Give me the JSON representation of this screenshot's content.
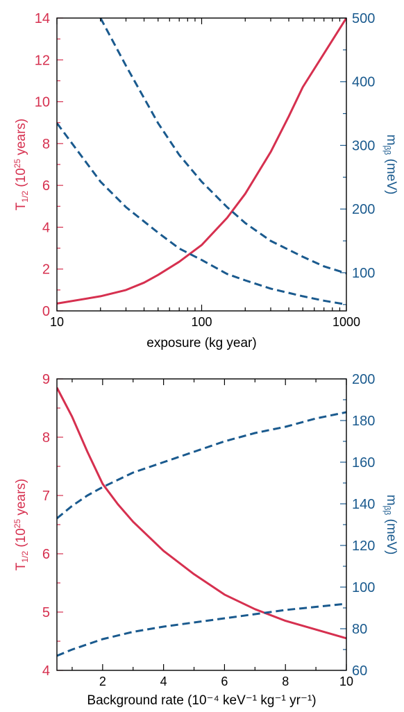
{
  "colors": {
    "left_axis": "#d6304f",
    "right_axis": "#1a5a8e",
    "axis": "#000000"
  },
  "chart_data": [
    {
      "type": "line",
      "xlabel": "exposure (kg year)",
      "ylabel_left": "T1/2 (10^25 years)",
      "ylabel_right": "mββ (meV)",
      "xscale": "log",
      "xlim": [
        10,
        1000
      ],
      "ylim_left": [
        0,
        14
      ],
      "ylim_right": [
        40,
        500
      ],
      "x_ticks": [
        10,
        100,
        1000
      ],
      "x_tick_labels": [
        "10",
        "100",
        "1000"
      ],
      "y_ticks_left": [
        0,
        2,
        4,
        6,
        8,
        10,
        12,
        14
      ],
      "y_tick_labels_left": [
        "0",
        "2",
        "4",
        "6",
        "8",
        "10",
        "12",
        "14"
      ],
      "y_ticks_right": [
        100,
        200,
        300,
        400,
        500
      ],
      "y_tick_labels_right": [
        "100",
        "200",
        "300",
        "400",
        "500"
      ],
      "series": [
        {
          "axis": "left",
          "style": "solid",
          "x": [
            10,
            20,
            30,
            40,
            50,
            70,
            100,
            150,
            200,
            300,
            400,
            500,
            700,
            1000
          ],
          "y": [
            0.35,
            0.7,
            1.0,
            1.35,
            1.72,
            2.35,
            3.15,
            4.45,
            5.6,
            7.6,
            9.3,
            10.7,
            12.3,
            14.0
          ]
        },
        {
          "axis": "right",
          "style": "dashed",
          "x": [
            20,
            30,
            50,
            70,
            100,
            150,
            200,
            300,
            500,
            700,
            1000
          ],
          "y": [
            500,
            425,
            335,
            285,
            243,
            203,
            178,
            150,
            125,
            110,
            99
          ]
        },
        {
          "axis": "right",
          "style": "dashed",
          "x": [
            10,
            20,
            30,
            50,
            70,
            100,
            150,
            200,
            300,
            500,
            700,
            1000
          ],
          "y": [
            335,
            243,
            203,
            163,
            138,
            120,
            98,
            88,
            75,
            63,
            56,
            50
          ]
        }
      ]
    },
    {
      "type": "line",
      "xlabel": "Background rate (10⁻⁴ keV⁻¹ kg⁻¹ yr⁻¹)",
      "ylabel_left": "T1/2 (10^25 years)",
      "ylabel_right": "mββ (meV)",
      "xlim": [
        0.5,
        10
      ],
      "ylim_left": [
        4,
        9
      ],
      "ylim_right": [
        60,
        200
      ],
      "x_ticks": [
        2,
        4,
        6,
        8,
        10
      ],
      "x_tick_labels": [
        "2",
        "4",
        "6",
        "8",
        "10"
      ],
      "y_ticks_left": [
        4,
        5,
        6,
        7,
        8,
        9
      ],
      "y_tick_labels_left": [
        "4",
        "5",
        "6",
        "7",
        "8",
        "9"
      ],
      "y_ticks_right": [
        60,
        80,
        100,
        120,
        140,
        160,
        180,
        200
      ],
      "y_tick_labels_right": [
        "60",
        "80",
        "100",
        "120",
        "140",
        "160",
        "180",
        "200"
      ],
      "series": [
        {
          "axis": "left",
          "style": "solid",
          "x": [
            0.5,
            1.0,
            1.5,
            2.0,
            2.5,
            3.0,
            4.0,
            5.0,
            6.0,
            7.0,
            8.0,
            9.0,
            10.0
          ],
          "y": [
            8.85,
            8.35,
            7.75,
            7.2,
            6.85,
            6.55,
            6.05,
            5.65,
            5.3,
            5.05,
            4.85,
            4.7,
            4.55
          ]
        },
        {
          "axis": "right",
          "style": "dashed",
          "x": [
            0.5,
            1.0,
            1.5,
            2.0,
            3.0,
            4.0,
            5.0,
            6.0,
            7.0,
            8.0,
            9.0,
            10.0
          ],
          "y": [
            133,
            139,
            144,
            148,
            155,
            160,
            165,
            170,
            174,
            177,
            181,
            184
          ]
        },
        {
          "axis": "right",
          "style": "dashed",
          "x": [
            0.5,
            1.0,
            2.0,
            3.0,
            4.0,
            5.0,
            6.0,
            7.0,
            8.0,
            9.0,
            10.0
          ],
          "y": [
            67,
            70,
            75,
            78.5,
            81,
            83,
            85,
            87,
            89,
            90.5,
            92
          ]
        }
      ]
    }
  ]
}
